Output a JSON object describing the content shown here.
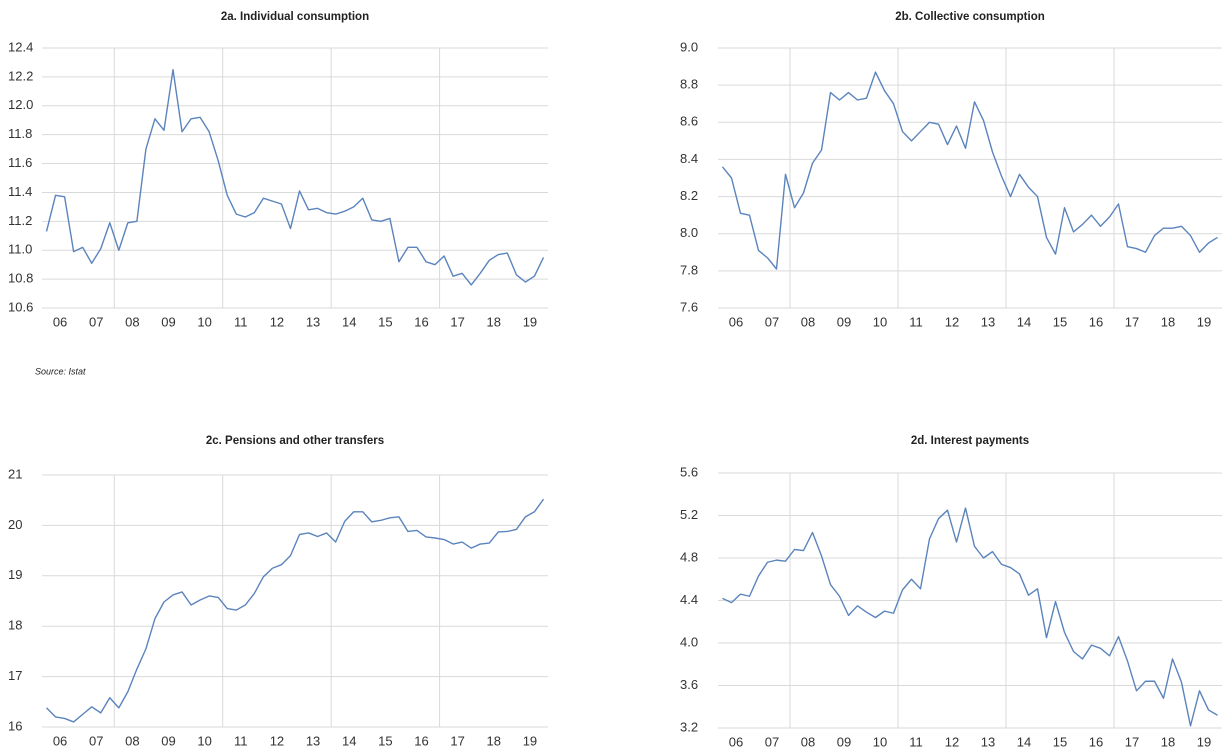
{
  "source": "Source: Istat",
  "chart_data": [
    {
      "type": "line",
      "title": "2a. Individual consumption",
      "categories": [
        null,
        "06",
        null,
        null,
        null,
        "07",
        null,
        null,
        null,
        "08",
        null,
        null,
        null,
        "09",
        null,
        null,
        null,
        "10",
        null,
        null,
        null,
        "11",
        null,
        null,
        null,
        "12",
        null,
        null,
        null,
        "13",
        null,
        null,
        null,
        "14",
        null,
        null,
        null,
        "15",
        null,
        null,
        null,
        "16",
        null,
        null,
        null,
        "17",
        null,
        null,
        null,
        "18",
        null,
        null,
        null,
        "19",
        null,
        null
      ],
      "series": [
        {
          "color": "#5b84bd",
          "values": [
            11.13,
            11.38,
            11.37,
            10.99,
            11.02,
            10.91,
            11.01,
            11.19,
            11.0,
            11.19,
            11.2,
            11.7,
            11.91,
            11.83,
            12.25,
            11.82,
            11.91,
            11.92,
            11.82,
            11.62,
            11.38,
            11.25,
            11.23,
            11.26,
            11.36,
            11.34,
            11.32,
            11.15,
            11.41,
            11.28,
            11.29,
            11.26,
            11.25,
            11.27,
            11.3,
            11.36,
            11.21,
            11.2,
            11.22,
            10.92,
            11.02,
            11.02,
            10.92,
            10.9,
            10.96,
            10.82,
            10.84,
            10.76,
            10.84,
            10.93,
            10.97,
            10.98,
            10.83,
            10.78,
            10.82,
            10.95
          ]
        }
      ],
      "ylim": [
        10.6,
        12.4
      ],
      "yticks": [
        10.6,
        10.8,
        {
          "value": 11,
          "label": "11.0"
        },
        11.2,
        11.4,
        11.6,
        11.8,
        {
          "value": 12,
          "label": "12.0"
        },
        12.2,
        12.4
      ],
      "grid": true
    },
    {
      "type": "line",
      "title": "2b. Collective consumption",
      "categories": [
        null,
        "06",
        null,
        null,
        null,
        "07",
        null,
        null,
        null,
        "08",
        null,
        null,
        null,
        "09",
        null,
        null,
        null,
        "10",
        null,
        null,
        null,
        "11",
        null,
        null,
        null,
        "12",
        null,
        null,
        null,
        "13",
        null,
        null,
        null,
        "14",
        null,
        null,
        null,
        "15",
        null,
        null,
        null,
        "16",
        null,
        null,
        null,
        "17",
        null,
        null,
        null,
        "18",
        null,
        null,
        null,
        "19",
        null,
        null
      ],
      "series": [
        {
          "color": "#5b84bd",
          "values": [
            8.36,
            8.3,
            8.11,
            8.1,
            7.91,
            7.87,
            7.81,
            8.32,
            8.14,
            8.22,
            8.38,
            8.45,
            8.76,
            8.72,
            8.76,
            8.72,
            8.73,
            8.87,
            8.77,
            8.7,
            8.55,
            8.5,
            8.55,
            8.6,
            8.59,
            8.48,
            8.58,
            8.46,
            8.71,
            8.61,
            8.44,
            8.31,
            8.2,
            8.32,
            8.25,
            8.2,
            7.98,
            7.89,
            8.14,
            8.01,
            8.05,
            8.1,
            8.04,
            8.09,
            8.16,
            7.93,
            7.92,
            7.9,
            7.99,
            8.03,
            8.03,
            8.04,
            7.99,
            7.9,
            7.95,
            7.98
          ]
        }
      ],
      "ylim": [
        7.6,
        9.0
      ],
      "yticks": [
        7.6,
        7.8,
        {
          "value": 8,
          "label": "8.0"
        },
        8.2,
        8.4,
        8.6,
        8.8,
        {
          "value": 9,
          "label": "9.0"
        }
      ],
      "grid": true
    },
    {
      "type": "line",
      "title": "2c. Pensions and other transfers",
      "categories": [
        null,
        "06",
        null,
        null,
        null,
        "07",
        null,
        null,
        null,
        "08",
        null,
        null,
        null,
        "09",
        null,
        null,
        null,
        "10",
        null,
        null,
        null,
        "11",
        null,
        null,
        null,
        "12",
        null,
        null,
        null,
        "13",
        null,
        null,
        null,
        "14",
        null,
        null,
        null,
        "15",
        null,
        null,
        null,
        "16",
        null,
        null,
        null,
        "17",
        null,
        null,
        null,
        "18",
        null,
        null,
        null,
        "19",
        null,
        null
      ],
      "series": [
        {
          "color": "#5b84bd",
          "values": [
            16.38,
            16.2,
            16.17,
            16.1,
            16.25,
            16.4,
            16.28,
            16.58,
            16.38,
            16.7,
            17.15,
            17.55,
            18.15,
            18.48,
            18.62,
            18.68,
            18.42,
            18.52,
            18.6,
            18.57,
            18.35,
            18.32,
            18.42,
            18.65,
            18.98,
            19.15,
            19.22,
            19.4,
            19.82,
            19.85,
            19.78,
            19.85,
            19.67,
            20.08,
            20.27,
            20.27,
            20.07,
            20.1,
            20.15,
            20.17,
            19.88,
            19.9,
            19.77,
            19.75,
            19.72,
            19.63,
            19.67,
            19.55,
            19.63,
            19.65,
            19.87,
            19.88,
            19.92,
            20.17,
            20.27,
            20.52
          ]
        }
      ],
      "ylim": [
        16,
        21
      ],
      "yticks": [
        16,
        17,
        18,
        19,
        20,
        21
      ],
      "grid": true
    },
    {
      "type": "line",
      "title": "2d. Interest payments",
      "categories": [
        null,
        "06",
        null,
        null,
        null,
        "07",
        null,
        null,
        null,
        "08",
        null,
        null,
        null,
        "09",
        null,
        null,
        null,
        "10",
        null,
        null,
        null,
        "11",
        null,
        null,
        null,
        "12",
        null,
        null,
        null,
        "13",
        null,
        null,
        null,
        "14",
        null,
        null,
        null,
        "15",
        null,
        null,
        null,
        "16",
        null,
        null,
        null,
        "17",
        null,
        null,
        null,
        "18",
        null,
        null,
        null,
        "19",
        null,
        null
      ],
      "series": [
        {
          "color": "#5b84bd",
          "values": [
            4.42,
            4.38,
            4.46,
            4.44,
            4.63,
            4.76,
            4.78,
            4.77,
            4.88,
            4.87,
            5.04,
            4.82,
            4.55,
            4.44,
            4.26,
            4.35,
            4.29,
            4.24,
            4.3,
            4.28,
            4.5,
            4.6,
            4.51,
            4.98,
            5.17,
            5.25,
            4.95,
            5.27,
            4.91,
            4.8,
            4.86,
            4.74,
            4.71,
            4.65,
            4.45,
            4.51,
            4.05,
            4.39,
            4.1,
            3.92,
            3.85,
            3.98,
            3.95,
            3.88,
            4.06,
            3.83,
            3.55,
            3.64,
            3.64,
            3.48,
            3.85,
            3.63,
            3.22,
            3.55,
            3.37,
            3.32
          ]
        }
      ],
      "ylim": [
        3.2,
        5.6
      ],
      "yticks": [
        3.2,
        3.6,
        {
          "value": 4,
          "label": "4.0"
        },
        4.4,
        4.8,
        5.2,
        5.6
      ],
      "grid": true
    }
  ]
}
